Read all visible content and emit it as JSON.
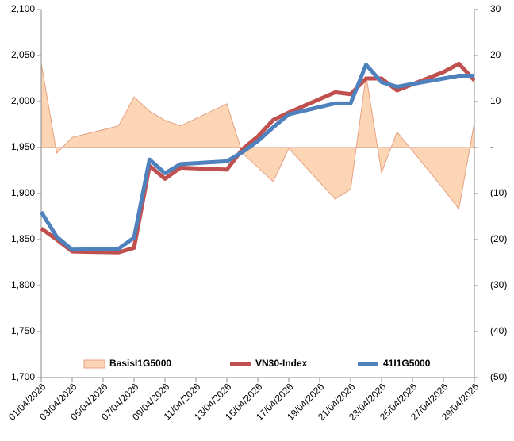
{
  "chart_data": {
    "type": "line",
    "x": [
      "01/04/2026",
      "02/04/2026",
      "03/04/2026",
      "06/04/2026",
      "07/04/2026",
      "08/04/2026",
      "09/04/2026",
      "10/04/2026",
      "13/04/2026",
      "14/04/2026",
      "15/04/2026",
      "16/04/2026",
      "17/04/2026",
      "20/04/2026",
      "21/04/2026",
      "22/04/2026",
      "23/04/2026",
      "24/04/2026",
      "27/04/2026",
      "28/04/2026",
      "29/04/2026"
    ],
    "xlim": [
      "01/04/2026",
      "29/04/2026"
    ],
    "xticks": [
      "01/04/2026",
      "03/04/2026",
      "05/04/2026",
      "07/04/2026",
      "09/04/2026",
      "11/04/2026",
      "13/04/2026",
      "15/04/2026",
      "17/04/2026",
      "19/04/2026",
      "21/04/2026",
      "23/04/2026",
      "25/04/2026",
      "27/04/2026",
      "29/04/2026"
    ],
    "ylim": [
      1700,
      2100
    ],
    "yticks": [
      {
        "value": 1700,
        "label": "1,700"
      },
      {
        "value": 1750,
        "label": "1,750"
      },
      {
        "value": 1800,
        "label": "1,800"
      },
      {
        "value": 1850,
        "label": "1,850"
      },
      {
        "value": 1900,
        "label": "1,900"
      },
      {
        "value": 1950,
        "label": "1,950"
      },
      {
        "value": 2000,
        "label": "2,000"
      },
      {
        "value": 2050,
        "label": "2,050"
      },
      {
        "value": 2100,
        "label": "2,100"
      }
    ],
    "y2lim": [
      -50,
      30
    ],
    "y2ticks": [
      {
        "value": -50,
        "label": "(50)"
      },
      {
        "value": -40,
        "label": "(40)"
      },
      {
        "value": -30,
        "label": "(30)"
      },
      {
        "value": -20,
        "label": "(20)"
      },
      {
        "value": -10,
        "label": "(10)"
      },
      {
        "value": 0,
        "label": "-"
      },
      10,
      20,
      30
    ],
    "series": [
      {
        "name": "BasisI1G5000",
        "type": "area",
        "axis": "y2",
        "color": "#fcd5b5",
        "values": [
          18.3,
          -1.2,
          2.2,
          4.7,
          11,
          7.9,
          5.9,
          4.7,
          9.5,
          -1.2,
          -4.3,
          -7.4,
          -0.2,
          -11.2,
          -9.1,
          15.7,
          -5.5,
          3.4,
          -9,
          -13.4,
          5.5
        ]
      },
      {
        "name": "VN30-Index",
        "type": "line",
        "color": "#c0504d",
        "values": [
          1862,
          1850,
          1837,
          1836,
          1841,
          1930,
          1916,
          1928,
          1926,
          1948,
          1962,
          1980,
          1988,
          2010,
          2008,
          2025,
          2025,
          2012,
          2032,
          2041,
          2023
        ]
      },
      {
        "name": "41I1G5000",
        "type": "line",
        "color": "#4f81bd",
        "values": [
          1880,
          1853,
          1839,
          1840,
          1852,
          1937,
          1922,
          1932,
          1935,
          1945,
          1957,
          1972,
          1986,
          1998,
          1998,
          2040,
          2021,
          2016,
          2025,
          2028,
          2028
        ]
      }
    ]
  }
}
